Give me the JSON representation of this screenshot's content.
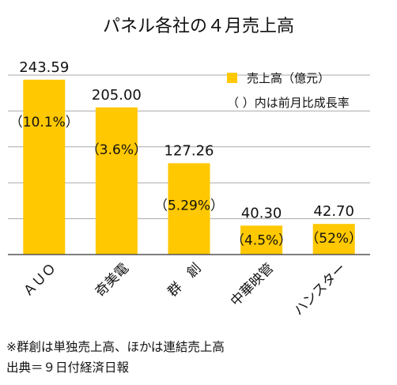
{
  "chart_data": {
    "type": "bar",
    "title": "パネル各社の４月売上高",
    "categories": [
      "ＡＵＯ",
      "奇美電",
      "群　創",
      "中華映管",
      "ハンスター"
    ],
    "series": [
      {
        "name": "売上高（億元）",
        "values": [
          243.59,
          205.0,
          127.26,
          40.3,
          42.7
        ],
        "value_labels": [
          "243.59",
          "205.00",
          "127.26",
          "40.30",
          "42.70"
        ],
        "pct_labels": [
          "（10.1%）",
          "（3.6%）",
          "（5.29%）",
          "（4.5%）",
          "（52%）"
        ]
      }
    ],
    "legend": {
      "position": "top-right",
      "series_label": "売上高（億元）",
      "note_label": "（ ）内は前月比成長率"
    },
    "ylim": [
      0,
      250
    ],
    "yticks": [
      0,
      50,
      100,
      150,
      200,
      250
    ],
    "grid": true,
    "bar_color": "#FFC800",
    "grid_color": "#a9a9a9",
    "axis_color": "#555555"
  },
  "footnotes": {
    "note": "※群創は単独売上高、ほかは連結売上高",
    "source": "出典＝９日付経済日報"
  }
}
